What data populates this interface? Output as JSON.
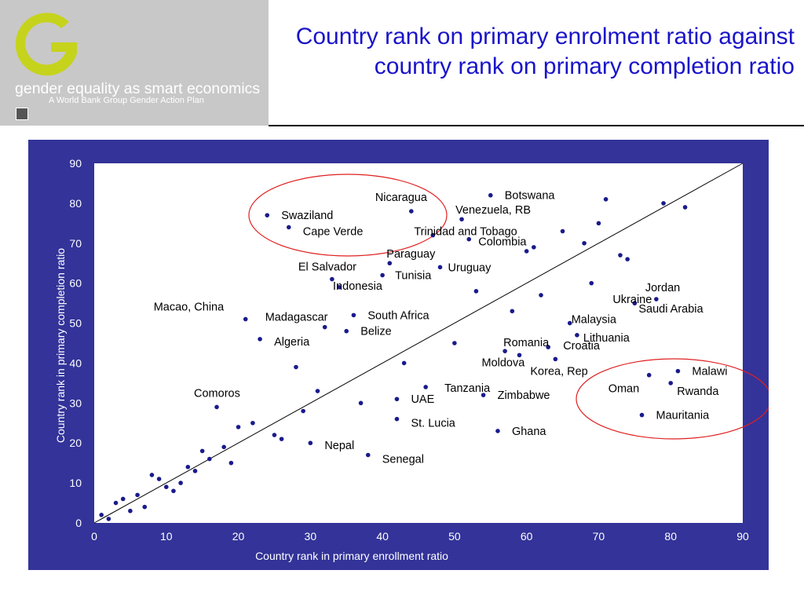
{
  "logo": {
    "name": "gender equality as smart economics",
    "subtitle": "A World Bank Group Gender Action Plan",
    "icon": "world-bank-icon"
  },
  "colors": {
    "title": "#1a14c9",
    "panel": "#333399",
    "plot_bg": "#ffffff",
    "dots": "#1a1a8c",
    "ellipse": "#e02020",
    "logo_green": "#c6d31c"
  },
  "chart_data": {
    "type": "scatter",
    "title": "Country rank on primary enrolment ratio against country rank on primary completion ratio",
    "xlabel": "Country rank in primary enrollment ratio",
    "ylabel": "Country rank in primary completion ratio",
    "xlim": [
      0,
      90
    ],
    "ylim": [
      0,
      90
    ],
    "xticks": [
      0,
      10,
      20,
      30,
      40,
      50,
      60,
      70,
      80,
      90
    ],
    "yticks": [
      0,
      10,
      20,
      30,
      40,
      50,
      60,
      70,
      80,
      90
    ],
    "grid": false,
    "reference_line": {
      "from": [
        0,
        0
      ],
      "to": [
        90,
        90
      ]
    },
    "points": [
      {
        "x": 24,
        "y": 77,
        "label": "Swaziland"
      },
      {
        "x": 27,
        "y": 74,
        "label": "Cape Verde"
      },
      {
        "x": 44,
        "y": 78,
        "label": "Nicaragua"
      },
      {
        "x": 55,
        "y": 82,
        "label": "Botswana"
      },
      {
        "x": 51,
        "y": 76,
        "label": "Venezuela, RB"
      },
      {
        "x": 47,
        "y": 72,
        "label": "Trinidad and Tobago"
      },
      {
        "x": 52,
        "y": 71,
        "label": "Colombia"
      },
      {
        "x": 41,
        "y": 65,
        "label": "Paraguay"
      },
      {
        "x": 48,
        "y": 64,
        "label": "Uruguay"
      },
      {
        "x": 33,
        "y": 61,
        "label": "El Salvador"
      },
      {
        "x": 40,
        "y": 62,
        "label": "Tunisia"
      },
      {
        "x": 34,
        "y": 59,
        "label": "Indonesia"
      },
      {
        "x": 21,
        "y": 51,
        "label": "Macao, China"
      },
      {
        "x": 32,
        "y": 49,
        "label": "Madagascar"
      },
      {
        "x": 36,
        "y": 52,
        "label": "South Africa"
      },
      {
        "x": 35,
        "y": 48,
        "label": "Belize"
      },
      {
        "x": 23,
        "y": 46,
        "label": "Algeria"
      },
      {
        "x": 17,
        "y": 29,
        "label": "Comoros"
      },
      {
        "x": 75,
        "y": 55,
        "label": "Ukraine"
      },
      {
        "x": 78,
        "y": 56,
        "label": "Jordan"
      },
      {
        "x": 75,
        "y": 55,
        "label": "Saudi Arabia"
      },
      {
        "x": 66,
        "y": 50,
        "label": "Malaysia"
      },
      {
        "x": 67,
        "y": 47,
        "label": "Lithuania"
      },
      {
        "x": 57,
        "y": 43,
        "label": "Romania"
      },
      {
        "x": 63,
        "y": 44,
        "label": "Croatia"
      },
      {
        "x": 59,
        "y": 42,
        "label": "Moldova"
      },
      {
        "x": 64,
        "y": 41,
        "label": "Korea, Rep"
      },
      {
        "x": 46,
        "y": 34,
        "label": "Tanzania"
      },
      {
        "x": 54,
        "y": 32,
        "label": "Zimbabwe"
      },
      {
        "x": 42,
        "y": 31,
        "label": "UAE"
      },
      {
        "x": 42,
        "y": 26,
        "label": "St. Lucia"
      },
      {
        "x": 56,
        "y": 23,
        "label": "Ghana"
      },
      {
        "x": 30,
        "y": 20,
        "label": "Nepal"
      },
      {
        "x": 38,
        "y": 17,
        "label": "Senegal"
      },
      {
        "x": 81,
        "y": 38,
        "label": "Malawi"
      },
      {
        "x": 77,
        "y": 37,
        "label": "Oman"
      },
      {
        "x": 80,
        "y": 35,
        "label": "Rwanda"
      },
      {
        "x": 76,
        "y": 27,
        "label": "Mauritania"
      },
      {
        "x": 1,
        "y": 2
      },
      {
        "x": 2,
        "y": 1
      },
      {
        "x": 3,
        "y": 5
      },
      {
        "x": 4,
        "y": 6
      },
      {
        "x": 5,
        "y": 3
      },
      {
        "x": 6,
        "y": 7
      },
      {
        "x": 7,
        "y": 4
      },
      {
        "x": 8,
        "y": 12
      },
      {
        "x": 9,
        "y": 11
      },
      {
        "x": 10,
        "y": 9
      },
      {
        "x": 11,
        "y": 8
      },
      {
        "x": 12,
        "y": 10
      },
      {
        "x": 13,
        "y": 14
      },
      {
        "x": 14,
        "y": 13
      },
      {
        "x": 15,
        "y": 18
      },
      {
        "x": 16,
        "y": 16
      },
      {
        "x": 18,
        "y": 19
      },
      {
        "x": 19,
        "y": 15
      },
      {
        "x": 20,
        "y": 24
      },
      {
        "x": 22,
        "y": 25
      },
      {
        "x": 25,
        "y": 22
      },
      {
        "x": 26,
        "y": 21
      },
      {
        "x": 28,
        "y": 39
      },
      {
        "x": 29,
        "y": 28
      },
      {
        "x": 31,
        "y": 33
      },
      {
        "x": 37,
        "y": 30
      },
      {
        "x": 43,
        "y": 40
      },
      {
        "x": 50,
        "y": 45
      },
      {
        "x": 53,
        "y": 58
      },
      {
        "x": 58,
        "y": 53
      },
      {
        "x": 60,
        "y": 68
      },
      {
        "x": 61,
        "y": 69
      },
      {
        "x": 62,
        "y": 57
      },
      {
        "x": 65,
        "y": 73
      },
      {
        "x": 68,
        "y": 70
      },
      {
        "x": 69,
        "y": 60
      },
      {
        "x": 70,
        "y": 75
      },
      {
        "x": 71,
        "y": 81
      },
      {
        "x": 73,
        "y": 67
      },
      {
        "x": 74,
        "y": 66
      },
      {
        "x": 79,
        "y": 80
      },
      {
        "x": 82,
        "y": 79
      }
    ],
    "ellipses": [
      {
        "label": "top-left cluster"
      },
      {
        "label": "bottom-right cluster"
      }
    ]
  }
}
